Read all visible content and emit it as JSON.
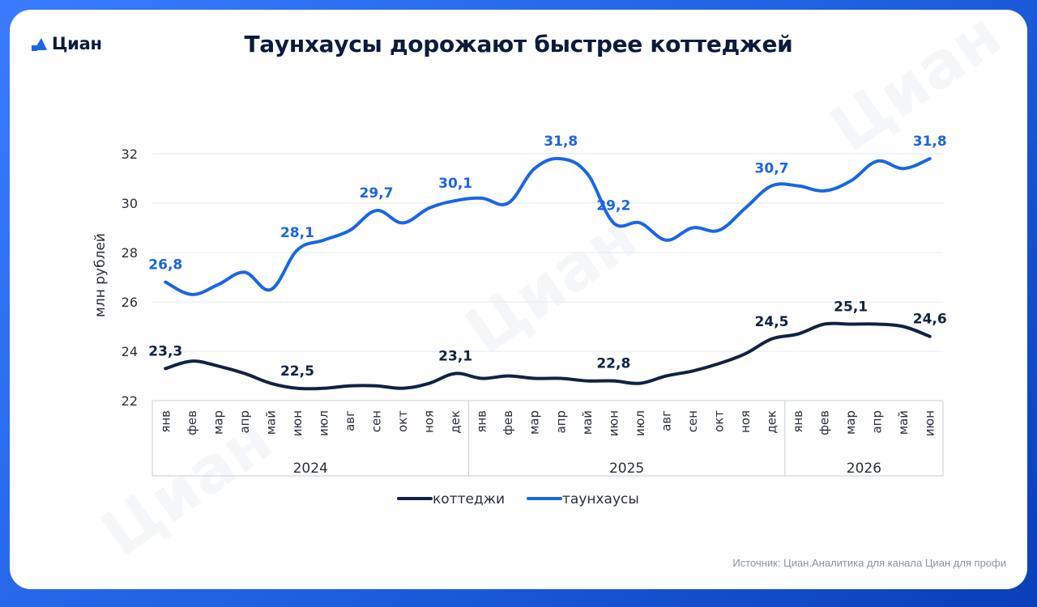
{
  "brand": {
    "name": "Циан",
    "logo_icon": "cian-house-icon",
    "accent_color": "#1a66e6"
  },
  "title": "Таунхаусы дорожают быстрее коттеджей",
  "source_note": "Источник: Циан.Аналитика для канала Циан для профи",
  "colors": {
    "cottages": "#0f2343",
    "townhouses": "#1a66e6"
  },
  "chart_data": {
    "type": "line",
    "title": "Таунхаусы дорожают быстрее коттеджей",
    "ylabel": "млн рублей",
    "xlabel": "",
    "ylim": [
      22,
      32
    ],
    "yticks": [
      22,
      24,
      26,
      28,
      30,
      32
    ],
    "grid": true,
    "legend_position": "bottom",
    "years": [
      {
        "label": "2024",
        "months": 12
      },
      {
        "label": "2025",
        "months": 12
      },
      {
        "label": "2026",
        "months": 6
      }
    ],
    "categories": [
      "янв",
      "фев",
      "мар",
      "апр",
      "май",
      "июн",
      "июл",
      "авг",
      "сен",
      "окт",
      "ноя",
      "дек",
      "янв",
      "фев",
      "мар",
      "апр",
      "май",
      "июн",
      "июл",
      "авг",
      "сен",
      "окт",
      "ноя",
      "дек",
      "янв",
      "фев",
      "мар",
      "апр",
      "май",
      "июн"
    ],
    "series": [
      {
        "name": "коттеджи",
        "color": "#0f2343",
        "values": [
          23.3,
          23.6,
          23.4,
          23.1,
          22.7,
          22.5,
          22.5,
          22.6,
          22.6,
          22.5,
          22.7,
          23.1,
          22.9,
          23.0,
          22.9,
          22.9,
          22.8,
          22.8,
          22.7,
          23.0,
          23.2,
          23.5,
          23.9,
          24.5,
          24.7,
          25.1,
          25.1,
          25.1,
          25.0,
          24.6
        ],
        "labels": [
          {
            "index": 0,
            "text": "23,3"
          },
          {
            "index": 5,
            "text": "22,5"
          },
          {
            "index": 11,
            "text": "23,1"
          },
          {
            "index": 17,
            "text": "22,8"
          },
          {
            "index": 23,
            "text": "24,5"
          },
          {
            "index": 26,
            "text": "25,1"
          },
          {
            "index": 29,
            "text": "24,6"
          }
        ]
      },
      {
        "name": "таунхаусы",
        "color": "#1a66e6",
        "values": [
          26.8,
          26.3,
          26.7,
          27.2,
          26.5,
          28.1,
          28.5,
          28.9,
          29.7,
          29.2,
          29.8,
          30.1,
          30.2,
          30.0,
          31.4,
          31.8,
          31.2,
          29.2,
          29.2,
          28.5,
          29.0,
          28.9,
          29.8,
          30.7,
          30.7,
          30.5,
          30.9,
          31.7,
          31.4,
          31.8
        ],
        "labels": [
          {
            "index": 0,
            "text": "26,8"
          },
          {
            "index": 5,
            "text": "28,1"
          },
          {
            "index": 8,
            "text": "29,7"
          },
          {
            "index": 11,
            "text": "30,1"
          },
          {
            "index": 15,
            "text": "31,8"
          },
          {
            "index": 17,
            "text": "29,2"
          },
          {
            "index": 23,
            "text": "30,7"
          },
          {
            "index": 29,
            "text": "31,8"
          }
        ]
      }
    ]
  }
}
